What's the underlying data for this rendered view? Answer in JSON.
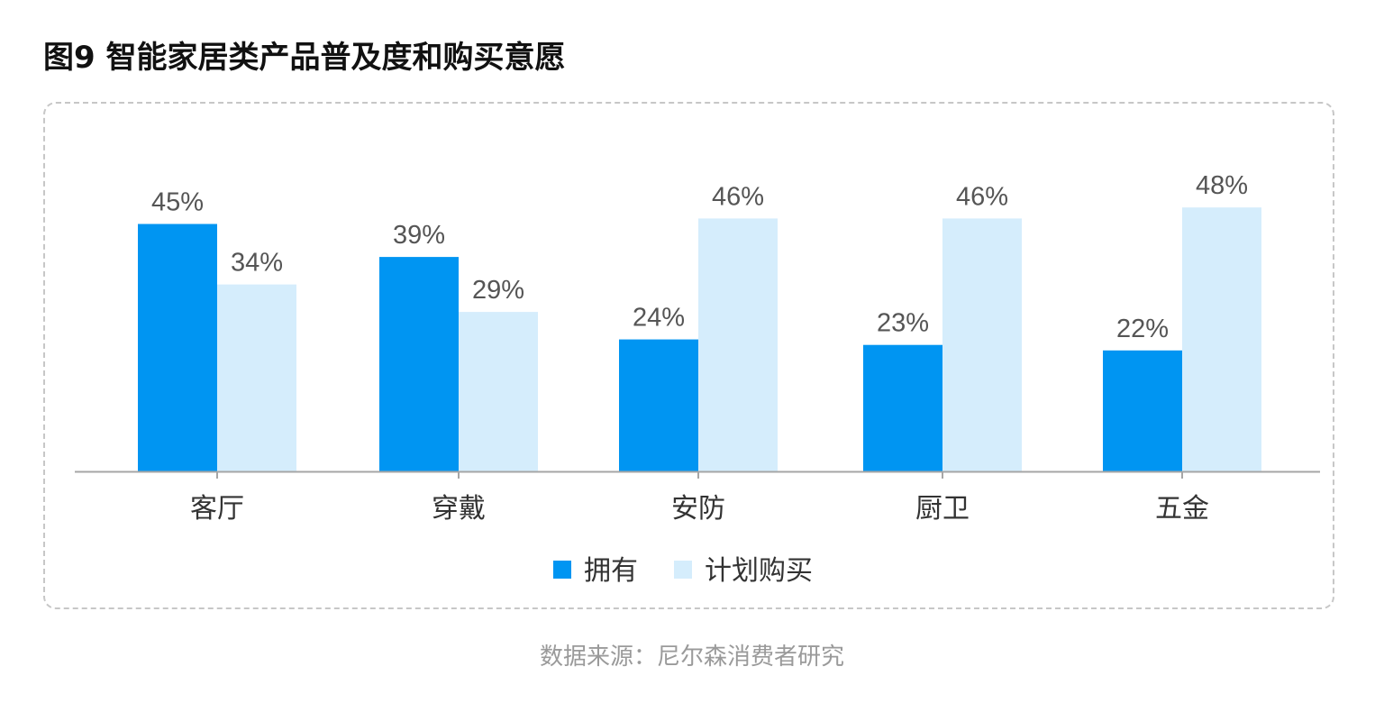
{
  "page": {
    "title": "图9 智能家居类产品普及度和购买意愿",
    "source": "数据来源：尼尔森消费者研究"
  },
  "chart_data": {
    "type": "bar",
    "categories": [
      "客厅",
      "穿戴",
      "安防",
      "厨卫",
      "五金"
    ],
    "series": [
      {
        "name": "拥有",
        "values": [
          45,
          39,
          24,
          23,
          22
        ],
        "color": "#0095f2"
      },
      {
        "name": "计划购买",
        "values": [
          34,
          29,
          46,
          46,
          48
        ],
        "color": "#d5edfc"
      }
    ],
    "value_suffix": "%",
    "ylim": [
      0,
      50
    ],
    "grid": false,
    "legend": "bottom-center"
  }
}
